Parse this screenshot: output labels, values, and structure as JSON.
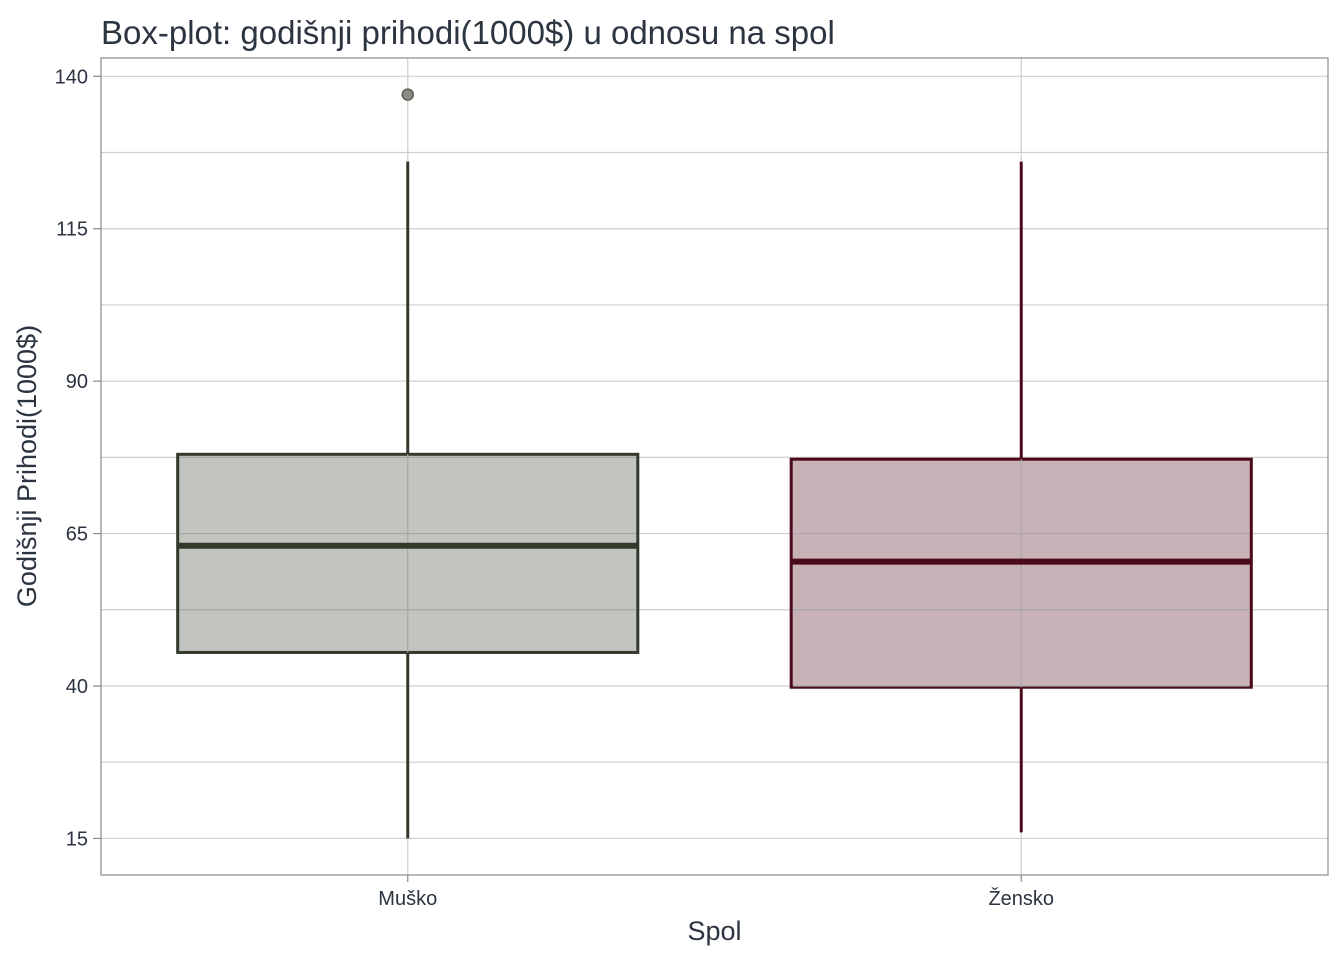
{
  "chart_data": {
    "type": "boxplot",
    "title": "Box-plot: godišnji prihodi(1000$) u odnosu na spol",
    "xlabel": "Spol",
    "ylabel": "Godišnji Prihodi(1000$)",
    "ylim": [
      9,
      143
    ],
    "yticks": [
      15,
      40,
      65,
      90,
      115,
      140
    ],
    "grid": true,
    "categories": [
      "Muško",
      "Žensko"
    ],
    "boxes": [
      {
        "category": "Muško",
        "min": 15,
        "q1": 45.5,
        "median": 63,
        "q3": 78,
        "max": 126,
        "outliers": [
          137
        ],
        "color": "#333a2c",
        "fill": "#c2c4bf"
      },
      {
        "category": "Žensko",
        "min": 16,
        "q1": 39.8,
        "median": 60.4,
        "q3": 77.2,
        "max": 126,
        "outliers": [],
        "color": "#4a0a1a",
        "fill": "#c8b2b7"
      }
    ]
  }
}
